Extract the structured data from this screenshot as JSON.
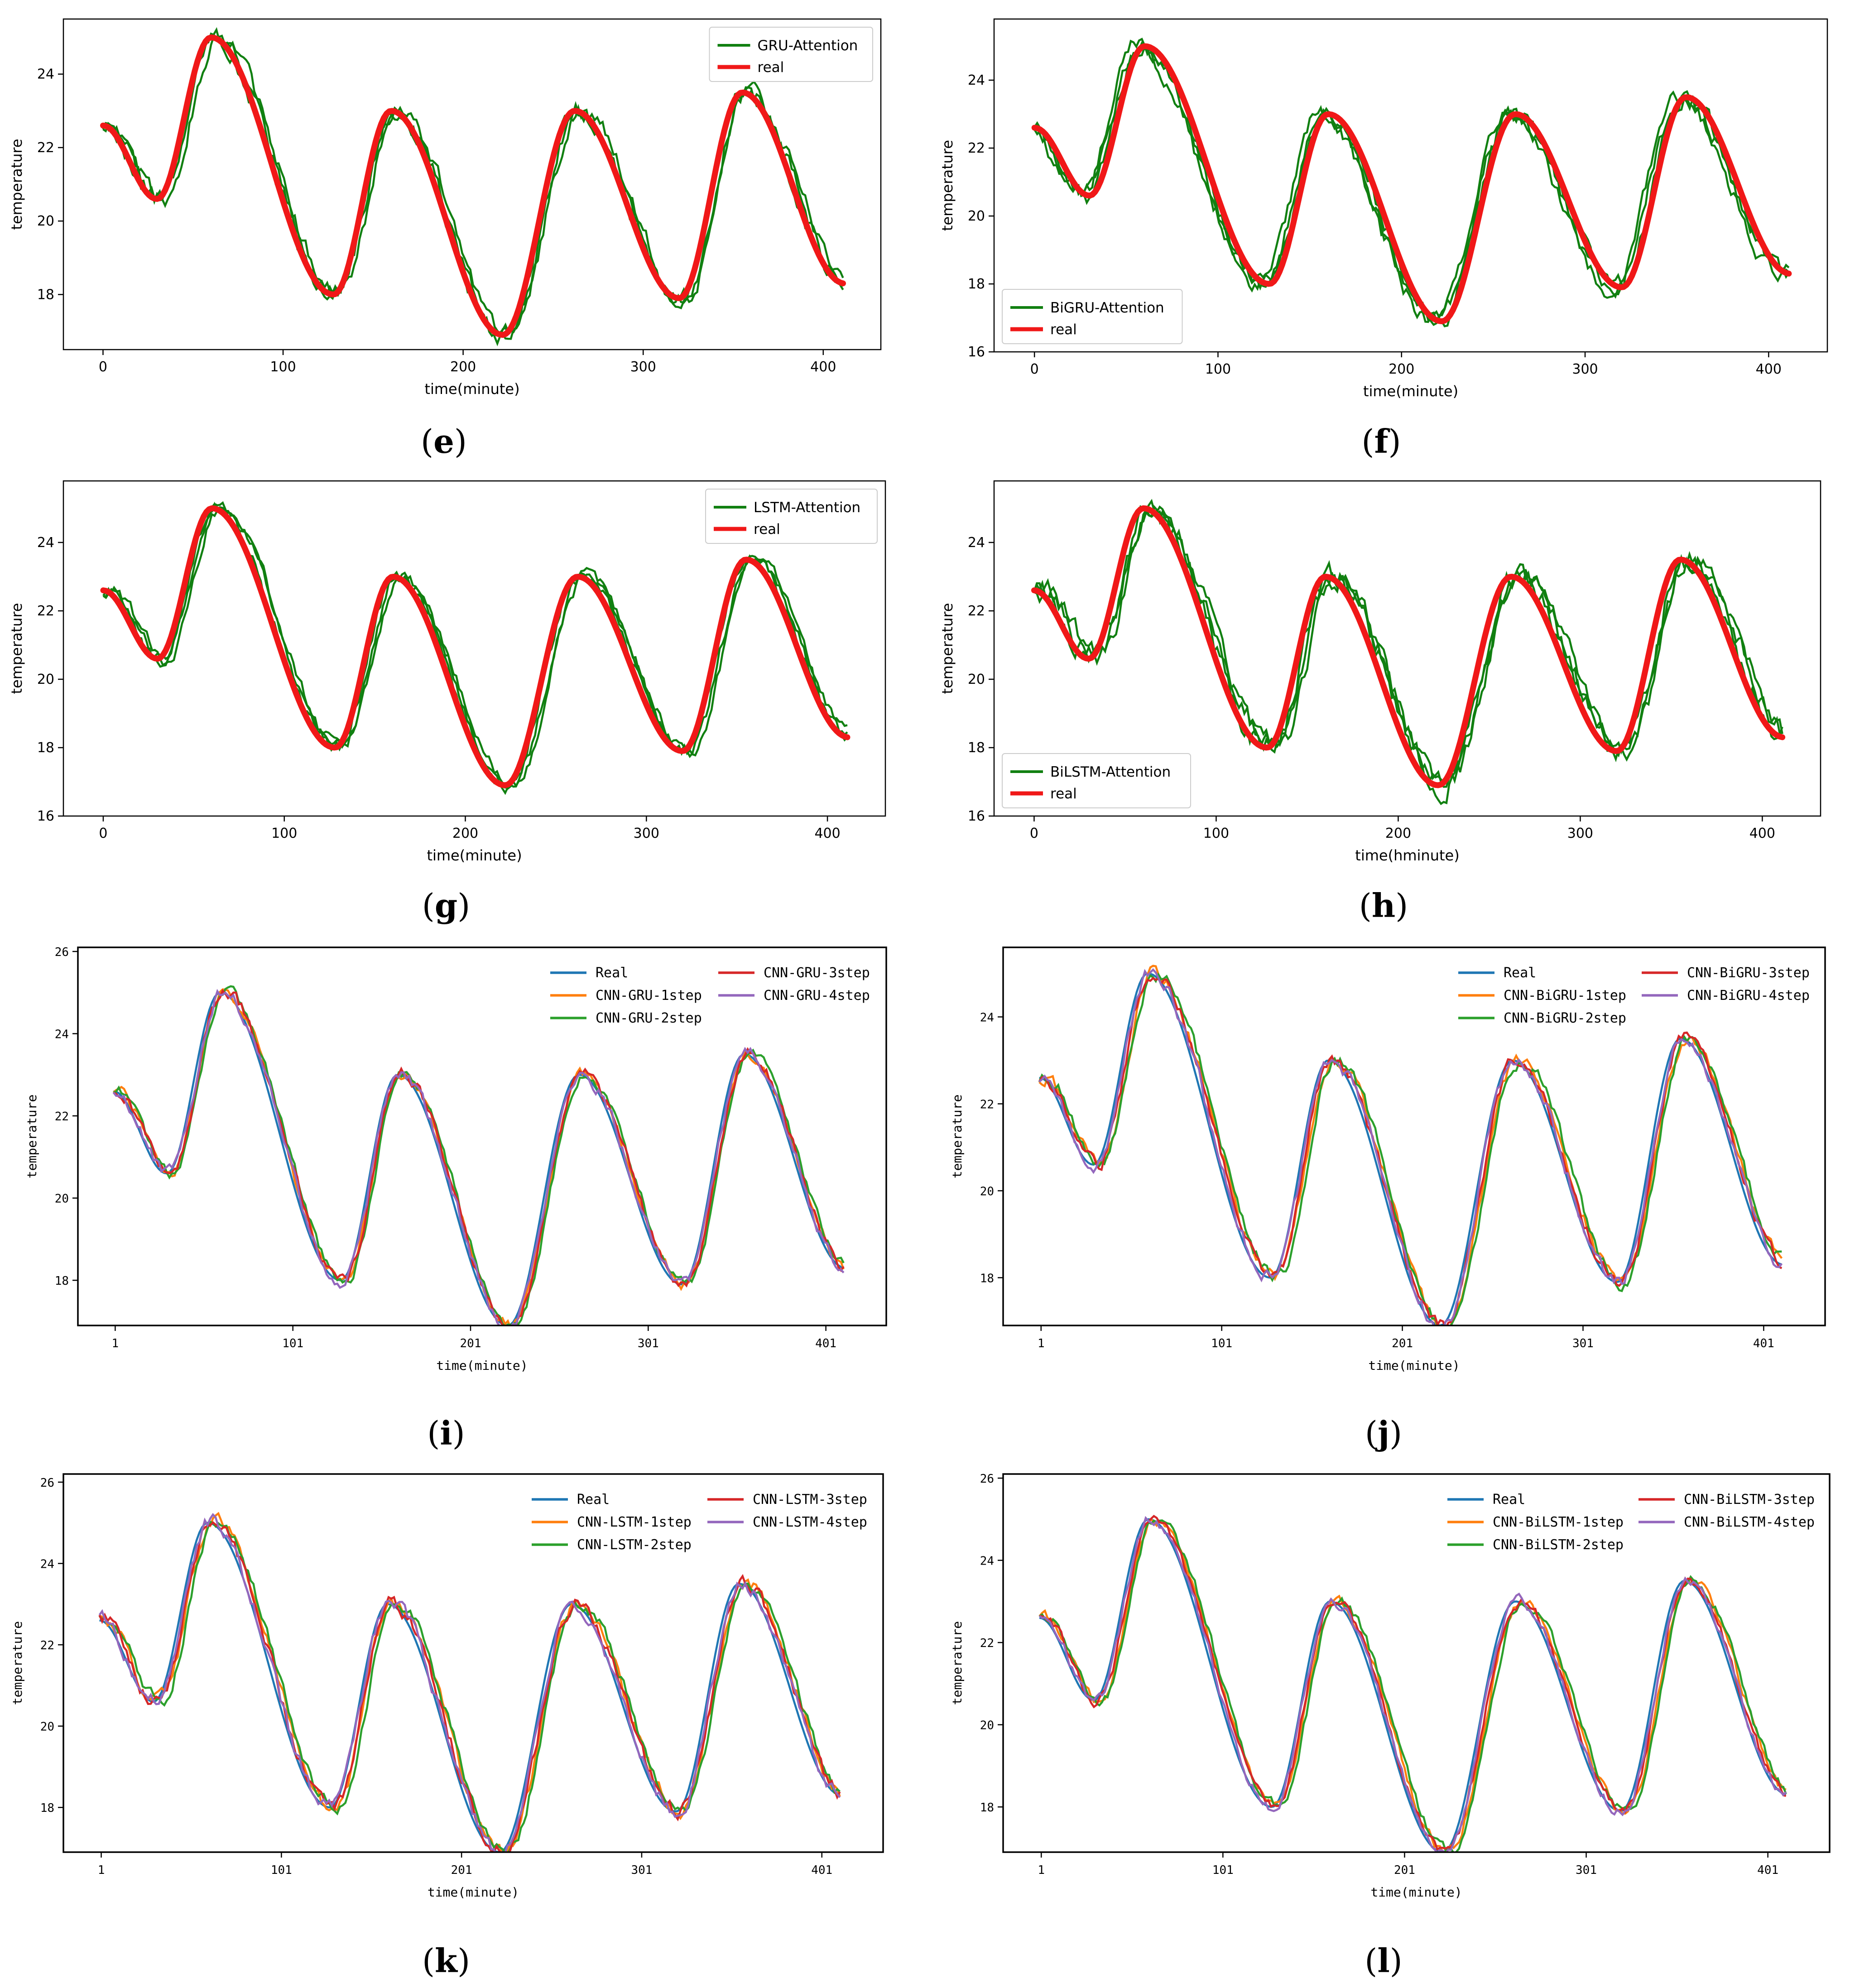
{
  "colors": {
    "green": "#118011",
    "red": "#f01818",
    "real_blue": "#1f77b4",
    "orange": "#ff7f0e",
    "green2": "#2ca02c",
    "red2": "#d62728",
    "purple": "#9467bd"
  },
  "chart_data": [
    {
      "type": "line",
      "label": "(e)",
      "ylabel": "temperature",
      "xlabel": "time(minute)",
      "xlim": [
        -22,
        432
      ],
      "ylim": [
        16.5,
        25.5
      ],
      "xticks": [
        0,
        100,
        200,
        300,
        400
      ],
      "xtick_labels": [
        "0",
        "100",
        "200",
        "300",
        "400"
      ],
      "yticks": [
        18,
        20,
        22,
        24
      ],
      "ytick_labels": [
        "18",
        "20",
        "22",
        "24"
      ],
      "legend": "top-right",
      "series": [
        {
          "name": "GRU-Attention",
          "kind": "pred",
          "lag": 2,
          "noise": 0.18
        },
        {
          "name": "real",
          "kind": "real"
        }
      ]
    },
    {
      "type": "line",
      "label": "(f)",
      "ylabel": "temperature",
      "xlabel": "time(minute)",
      "xlim": [
        -22,
        432
      ],
      "ylim": [
        16,
        25.8
      ],
      "xticks": [
        0,
        100,
        200,
        300,
        400
      ],
      "xtick_labels": [
        "0",
        "100",
        "200",
        "300",
        "400"
      ],
      "yticks": [
        16,
        18,
        20,
        22,
        24
      ],
      "ytick_labels": [
        "16",
        "18",
        "20",
        "22",
        "24"
      ],
      "legend": "bottom-left",
      "series": [
        {
          "name": "BiGRU-Attention",
          "kind": "pred",
          "lag": -3,
          "noise": 0.2
        },
        {
          "name": "real",
          "kind": "real"
        }
      ]
    },
    {
      "type": "line",
      "label": "(g)",
      "ylabel": "temperature",
      "xlabel": "time(minute)",
      "xlim": [
        -22,
        432
      ],
      "ylim": [
        16,
        25.8
      ],
      "xticks": [
        0,
        100,
        200,
        300,
        400
      ],
      "xtick_labels": [
        "0",
        "100",
        "200",
        "300",
        "400"
      ],
      "yticks": [
        16,
        18,
        20,
        22,
        24
      ],
      "ytick_labels": [
        "16",
        "18",
        "20",
        "22",
        "24"
      ],
      "legend": "top-right",
      "series": [
        {
          "name": "LSTM-Attention",
          "kind": "pred",
          "lag": 3,
          "noise": 0.15
        },
        {
          "name": "real",
          "kind": "real"
        }
      ]
    },
    {
      "type": "line",
      "label": "(h)",
      "ylabel": "temperature",
      "xlabel": "time(hminute)",
      "xlim": [
        -22,
        432
      ],
      "ylim": [
        16,
        25.8
      ],
      "xticks": [
        0,
        100,
        200,
        300,
        400
      ],
      "xtick_labels": [
        "0",
        "100",
        "200",
        "300",
        "400"
      ],
      "yticks": [
        16,
        18,
        20,
        22,
        24
      ],
      "ytick_labels": [
        "16",
        "18",
        "20",
        "22",
        "24"
      ],
      "legend": "bottom-left",
      "series": [
        {
          "name": "BiLSTM-Attention",
          "kind": "pred",
          "lag": 4,
          "noise": 0.25
        },
        {
          "name": "real",
          "kind": "real"
        }
      ]
    },
    {
      "type": "line",
      "label": "(i)",
      "ylabel": "temperature",
      "xlabel": "time(minute)",
      "xlim": [
        -20,
        435
      ],
      "ylim": [
        16.9,
        26.1
      ],
      "xticks": [
        1,
        101,
        201,
        301,
        401
      ],
      "xtick_labels": [
        "1",
        "101",
        "201",
        "301",
        "401"
      ],
      "yticks": [
        18,
        20,
        22,
        24,
        26
      ],
      "ytick_labels": [
        "18",
        "20",
        "22",
        "24",
        "26"
      ],
      "legend": "top-right",
      "series": [
        {
          "name": "Real",
          "kind": "real"
        },
        {
          "name": "CNN-GRU-1step",
          "kind": "pred",
          "lag": 2,
          "noise": 0.1
        },
        {
          "name": "CNN-GRU-2step",
          "kind": "pred",
          "lag": 3,
          "noise": 0.1
        },
        {
          "name": "CNN-GRU-3step",
          "kind": "pred",
          "lag": 2,
          "noise": 0.12
        },
        {
          "name": "CNN-GRU-4step",
          "kind": "pred",
          "lag": 1,
          "noise": 0.12
        }
      ]
    },
    {
      "type": "line",
      "label": "(j)",
      "ylabel": "temperature",
      "xlabel": "time(minute)",
      "xlim": [
        -20,
        435
      ],
      "ylim": [
        16.9,
        25.6
      ],
      "xticks": [
        1,
        101,
        201,
        301,
        401
      ],
      "xtick_labels": [
        "1",
        "101",
        "201",
        "301",
        "401"
      ],
      "yticks": [
        18,
        20,
        22,
        24
      ],
      "ytick_labels": [
        "18",
        "20",
        "22",
        "24"
      ],
      "legend": "top-right",
      "series": [
        {
          "name": "Real",
          "kind": "real"
        },
        {
          "name": "CNN-BiGRU-1step",
          "kind": "pred",
          "lag": 3,
          "noise": 0.12
        },
        {
          "name": "CNN-BiGRU-2step",
          "kind": "pred",
          "lag": 4,
          "noise": 0.12
        },
        {
          "name": "CNN-BiGRU-3step",
          "kind": "pred",
          "lag": 2,
          "noise": 0.12
        },
        {
          "name": "CNN-BiGRU-4step",
          "kind": "pred",
          "lag": 1,
          "noise": 0.12
        }
      ]
    },
    {
      "type": "line",
      "label": "(k)",
      "ylabel": "temperature",
      "xlabel": "time(minute)",
      "xlim": [
        -20,
        435
      ],
      "ylim": [
        16.9,
        26.2
      ],
      "xticks": [
        1,
        101,
        201,
        301,
        401
      ],
      "xtick_labels": [
        "1",
        "101",
        "201",
        "301",
        "401"
      ],
      "yticks": [
        18,
        20,
        22,
        24,
        26
      ],
      "ytick_labels": [
        "18",
        "20",
        "22",
        "24",
        "26"
      ],
      "legend": "top-right",
      "series": [
        {
          "name": "Real",
          "kind": "real"
        },
        {
          "name": "CNN-LSTM-1step",
          "kind": "pred",
          "lag": 3,
          "noise": 0.14
        },
        {
          "name": "CNN-LSTM-2step",
          "kind": "pred",
          "lag": 4,
          "noise": 0.12
        },
        {
          "name": "CNN-LSTM-3step",
          "kind": "pred",
          "lag": 2,
          "noise": 0.14
        },
        {
          "name": "CNN-LSTM-4step",
          "kind": "pred",
          "lag": 1,
          "noise": 0.14
        }
      ]
    },
    {
      "type": "line",
      "label": "(l)",
      "ylabel": "temperature",
      "xlabel": "time(minute)",
      "xlim": [
        -20,
        435
      ],
      "ylim": [
        16.9,
        26.1
      ],
      "xticks": [
        1,
        101,
        201,
        301,
        401
      ],
      "xtick_labels": [
        "1",
        "101",
        "201",
        "301",
        "401"
      ],
      "yticks": [
        18,
        20,
        22,
        24,
        26
      ],
      "ytick_labels": [
        "18",
        "20",
        "22",
        "24",
        "26"
      ],
      "legend": "top-right",
      "series": [
        {
          "name": "Real",
          "kind": "real"
        },
        {
          "name": "CNN-BiLSTM-1step",
          "kind": "pred",
          "lag": 3,
          "noise": 0.1
        },
        {
          "name": "CNN-BiLSTM-2step",
          "kind": "pred",
          "lag": 4,
          "noise": 0.1
        },
        {
          "name": "CNN-BiLSTM-3step",
          "kind": "pred",
          "lag": 2,
          "noise": 0.1
        },
        {
          "name": "CNN-BiLSTM-4step",
          "kind": "pred",
          "lag": 1,
          "noise": 0.1
        }
      ]
    }
  ],
  "real_curve_knots": [
    [
      0,
      22.6
    ],
    [
      30,
      20.6
    ],
    [
      60,
      25.0
    ],
    [
      128,
      18.0
    ],
    [
      160,
      23.0
    ],
    [
      222,
      16.9
    ],
    [
      262,
      23.0
    ],
    [
      320,
      17.9
    ],
    [
      355,
      23.5
    ],
    [
      412,
      18.3
    ]
  ]
}
